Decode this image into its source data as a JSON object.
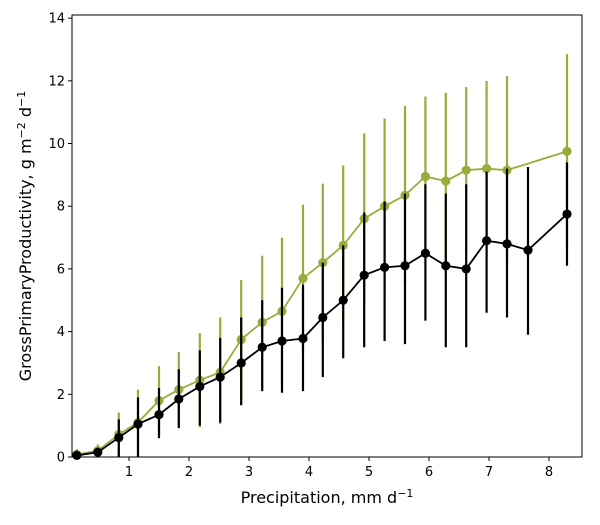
{
  "chart_data": {
    "type": "line",
    "title": "",
    "xlabel": "Precipitation,  mm d",
    "xlabel_sup": "−1",
    "ylabel": "GrossPrimaryProductivity,  g m",
    "ylabel_sup1": "−2",
    "ylabel_mid": " d",
    "ylabel_sup2": "−1",
    "xlim": [
      0.05,
      8.55
    ],
    "ylim": [
      0,
      14.1
    ],
    "xticks": [
      1,
      2,
      3,
      4,
      5,
      6,
      7,
      8
    ],
    "yticks": [
      0,
      2,
      4,
      6,
      8,
      10,
      12,
      14
    ],
    "grid": false,
    "legend": "none",
    "series": [
      {
        "color": "#9aab3a",
        "x": [
          0.13,
          0.48,
          0.83,
          1.15,
          1.5,
          1.83,
          2.18,
          2.52,
          2.87,
          3.22,
          3.55,
          3.9,
          4.23,
          4.57,
          4.92,
          5.26,
          5.6,
          5.94,
          6.28,
          6.62,
          6.96,
          7.3,
          8.3
        ],
        "y": [
          0.08,
          0.2,
          0.72,
          1.1,
          1.8,
          2.15,
          2.45,
          2.7,
          3.75,
          4.3,
          4.65,
          5.7,
          6.2,
          6.75,
          7.6,
          8.0,
          8.35,
          8.95,
          8.8,
          9.15,
          9.2,
          9.15,
          9.75
        ],
        "err_low": [
          0.0,
          0.0,
          0.0,
          0.12,
          0.7,
          0.95,
          0.95,
          1.05,
          1.85,
          2.2,
          2.3,
          3.4,
          3.7,
          4.3,
          4.85,
          5.2,
          5.55,
          6.35,
          5.9,
          6.5,
          6.4,
          6.15,
          6.7
        ],
        "err_high": [
          0.25,
          0.4,
          1.42,
          2.15,
          2.9,
          3.35,
          3.95,
          4.45,
          5.65,
          6.42,
          7.0,
          8.05,
          8.72,
          9.3,
          10.32,
          10.8,
          11.2,
          11.5,
          11.62,
          11.8,
          12.0,
          12.15,
          12.85
        ]
      },
      {
        "color": "#000000",
        "x": [
          0.13,
          0.48,
          0.83,
          1.15,
          1.5,
          1.83,
          2.18,
          2.52,
          2.87,
          3.22,
          3.55,
          3.9,
          4.23,
          4.57,
          4.92,
          5.26,
          5.6,
          5.94,
          6.28,
          6.62,
          6.96,
          7.3,
          7.65,
          8.3
        ],
        "y": [
          0.05,
          0.15,
          0.62,
          1.05,
          1.35,
          1.85,
          2.25,
          2.55,
          3.0,
          3.5,
          3.7,
          3.78,
          4.45,
          5.0,
          5.8,
          6.05,
          6.1,
          6.5,
          6.1,
          6.0,
          6.9,
          6.8,
          6.6,
          7.75
        ],
        "err_low": [
          0.0,
          0.0,
          0.0,
          0.0,
          0.6,
          0.92,
          1.0,
          1.1,
          1.65,
          2.1,
          2.05,
          2.1,
          2.55,
          3.15,
          3.5,
          3.7,
          3.6,
          4.35,
          3.5,
          3.5,
          4.6,
          4.45,
          3.9,
          6.1
        ],
        "err_high": [
          0.2,
          0.3,
          1.2,
          1.9,
          2.2,
          2.8,
          3.4,
          3.8,
          4.45,
          5.0,
          5.4,
          5.5,
          6.2,
          6.75,
          7.8,
          8.15,
          8.4,
          8.7,
          8.4,
          8.7,
          9.1,
          9.2,
          9.25,
          9.4
        ]
      }
    ]
  }
}
